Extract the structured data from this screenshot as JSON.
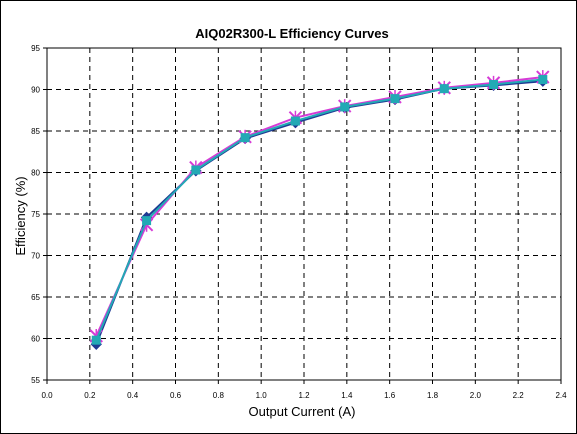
{
  "chart_data": {
    "type": "line",
    "title": "AIQ02R300-L Efficiency Curves",
    "xlabel": "Output Current (A)",
    "ylabel": "Efficiency (%)",
    "xlim": [
      0,
      2.4
    ],
    "ylim": [
      55,
      95
    ],
    "x_ticks": [
      "0.0",
      "0.2",
      "0.4",
      "0.6",
      "0.8",
      "1.0",
      "1.2",
      "1.4",
      "1.6",
      "1.8",
      "2.0",
      "2.2",
      "2.4"
    ],
    "y_ticks": [
      "55",
      "60",
      "65",
      "70",
      "75",
      "80",
      "85",
      "90",
      "95"
    ],
    "grid": true,
    "legend": "none",
    "series": [
      {
        "color": "#1f3a93",
        "marker": "diamond",
        "x": [
          0.23,
          0.465,
          0.695,
          0.925,
          1.16,
          1.39,
          1.625,
          1.855,
          2.085,
          2.315
        ],
        "y": [
          59.3,
          74.6,
          80.2,
          84.1,
          86.0,
          87.8,
          88.8,
          90.1,
          90.5,
          91.0
        ]
      },
      {
        "color": "#d63bd6",
        "marker": "x",
        "x": [
          0.23,
          0.465,
          0.695,
          0.925,
          1.16,
          1.39,
          1.625,
          1.855,
          2.085,
          2.315
        ],
        "y": [
          60.3,
          73.7,
          80.6,
          84.3,
          86.6,
          88.0,
          89.1,
          90.2,
          90.8,
          91.5
        ]
      },
      {
        "color": "#22a9b5",
        "marker": "square",
        "x": [
          0.23,
          0.465,
          0.695,
          0.925,
          1.16,
          1.39,
          1.625,
          1.855,
          2.085,
          2.315
        ],
        "y": [
          59.8,
          74.2,
          80.3,
          84.2,
          86.2,
          87.9,
          88.9,
          90.1,
          90.6,
          91.2
        ]
      }
    ]
  }
}
